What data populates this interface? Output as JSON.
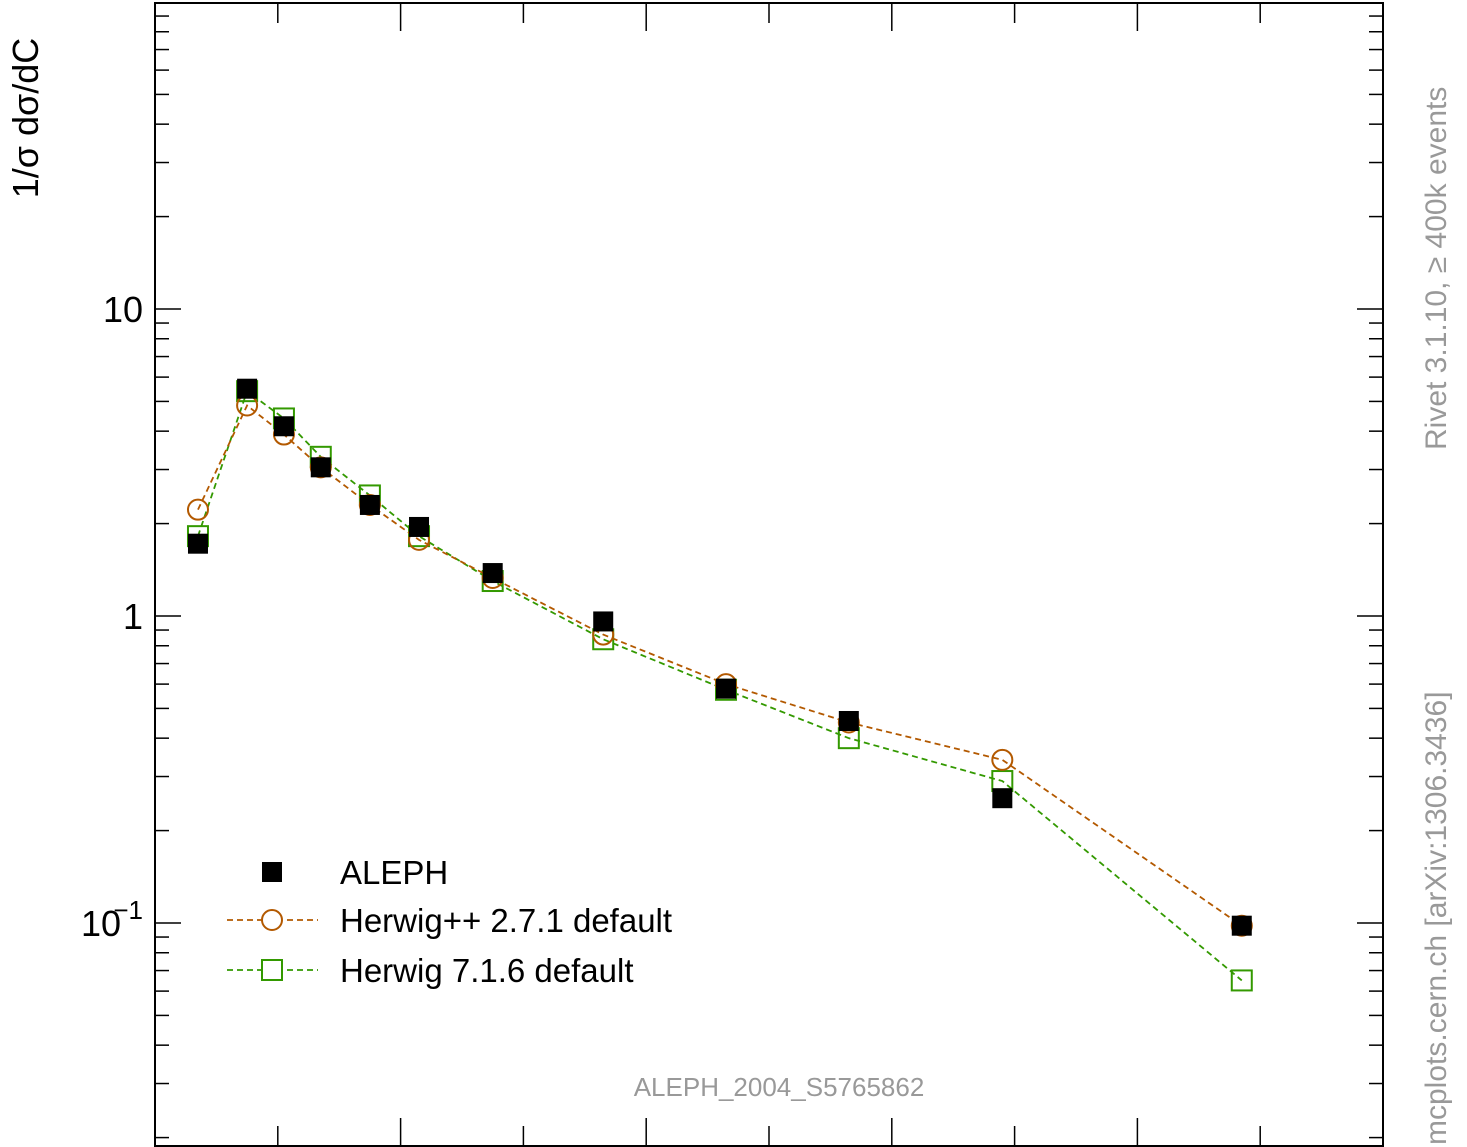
{
  "chart_data": {
    "type": "scatter",
    "ylabel": "1/σ  dσ/dC",
    "yscale": "log",
    "ylim": [
      0.025,
      110
    ],
    "xlim": [
      0.0,
      1.0
    ],
    "grid": false,
    "legend_position": "bottom-left",
    "yticks": [
      {
        "value": 10,
        "label": "10"
      },
      {
        "value": 1,
        "label": "1"
      },
      {
        "value": 0.1,
        "label": "10",
        "sup": "−1"
      }
    ],
    "series": [
      {
        "name": "ALEPH",
        "marker": "filled-square",
        "line": "none",
        "color": "#000000",
        "x": [
          0.035,
          0.075,
          0.105,
          0.135,
          0.175,
          0.215,
          0.275,
          0.365,
          0.465,
          0.565,
          0.69,
          0.885
        ],
        "y": [
          1.72,
          5.5,
          4.15,
          3.05,
          2.3,
          1.95,
          1.38,
          0.96,
          0.58,
          0.455,
          0.255,
          0.098
        ]
      },
      {
        "name": "Herwig++ 2.7.1 default",
        "marker": "open-circle",
        "line": "dashed",
        "color": "#b35900",
        "x": [
          0.035,
          0.075,
          0.105,
          0.135,
          0.175,
          0.215,
          0.275,
          0.365,
          0.465,
          0.565,
          0.69,
          0.885
        ],
        "y": [
          2.22,
          4.85,
          3.9,
          3.05,
          2.3,
          1.77,
          1.33,
          0.87,
          0.6,
          0.45,
          0.34,
          0.098
        ]
      },
      {
        "name": "Herwig 7.1.6 default",
        "marker": "open-square",
        "line": "dashed",
        "color": "#339900",
        "x": [
          0.035,
          0.075,
          0.105,
          0.135,
          0.175,
          0.215,
          0.275,
          0.365,
          0.465,
          0.565,
          0.69,
          0.885
        ],
        "y": [
          1.82,
          5.4,
          4.4,
          3.3,
          2.47,
          1.82,
          1.3,
          0.84,
          0.575,
          0.4,
          0.29,
          0.065
        ]
      }
    ]
  },
  "annotations": {
    "analysis_id": "ALEPH_2004_S5765862",
    "rivet_label": "Rivet 3.1.10, ≥ 400k events",
    "source_label": "mcplots.cern.ch [arXiv:1306.3436]"
  }
}
